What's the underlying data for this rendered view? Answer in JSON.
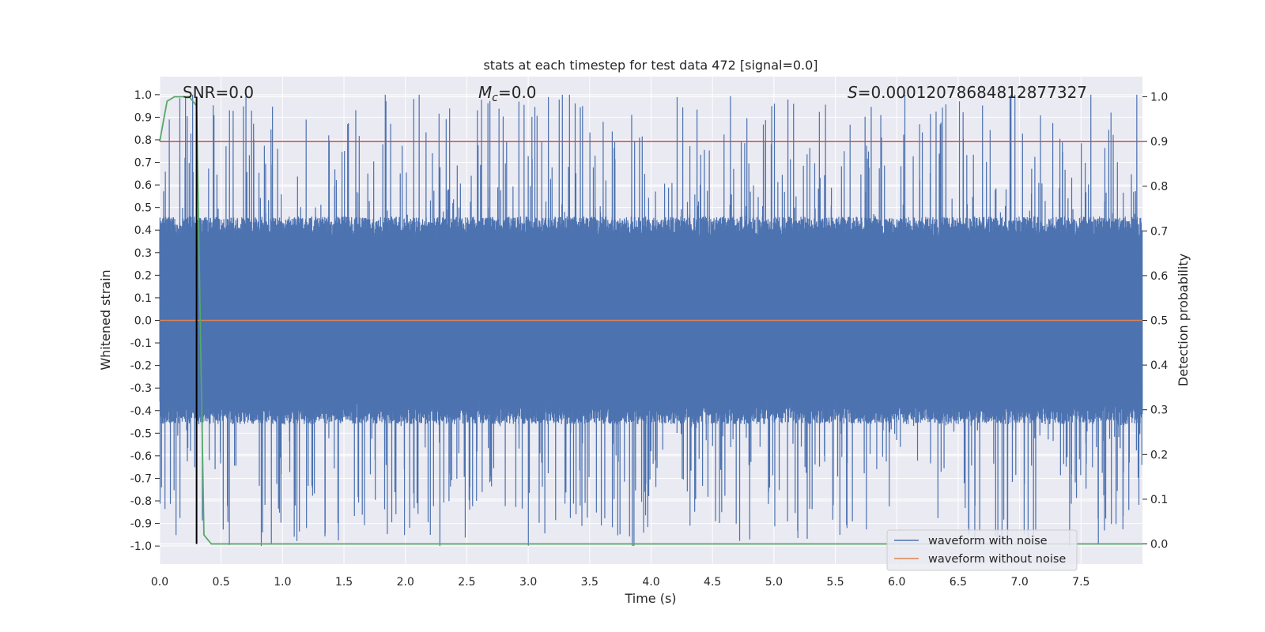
{
  "chart_data": {
    "type": "line",
    "title": "stats at each timestep for test data 472 [signal=0.0]",
    "xlabel": "Time (s)",
    "ylabel_left": "Whitened strain",
    "ylabel_right": "Detection probability",
    "xlim": [
      0.0,
      8.0
    ],
    "ylim_left": [
      -1.08,
      1.08
    ],
    "ylim_right": [
      -0.045,
      1.045
    ],
    "x_ticks": [
      0.0,
      0.5,
      1.0,
      1.5,
      2.0,
      2.5,
      3.0,
      3.5,
      4.0,
      4.5,
      5.0,
      5.5,
      6.0,
      6.5,
      7.0,
      7.5
    ],
    "x_tick_labels": [
      "0.0",
      "0.5",
      "1.0",
      "1.5",
      "2.0",
      "2.5",
      "3.0",
      "3.5",
      "4.0",
      "4.5",
      "5.0",
      "5.5",
      "6.0",
      "6.5",
      "7.0",
      "7.5"
    ],
    "left_ticks": [
      1.0,
      0.9,
      0.8,
      0.7,
      0.6,
      0.5,
      0.4,
      0.3,
      0.2,
      0.1,
      0.0,
      -0.1,
      -0.2,
      -0.3,
      -0.4,
      -0.5,
      -0.6,
      -0.7,
      -0.8,
      -0.9,
      -1.0
    ],
    "left_tick_labels": [
      "1.0",
      "0.9",
      "0.8",
      "0.7",
      "0.6",
      "0.5",
      "0.4",
      "0.3",
      "0.2",
      "0.1",
      "0.0",
      "-0.1",
      "-0.2",
      "-0.3",
      "-0.4",
      "-0.5",
      "-0.6",
      "-0.7",
      "-0.8",
      "-0.9",
      "-1.0"
    ],
    "right_ticks": [
      1.0,
      0.9,
      0.8,
      0.7,
      0.6,
      0.5,
      0.4,
      0.3,
      0.2,
      0.1,
      0.0
    ],
    "right_tick_labels": [
      "1.0",
      "0.9",
      "0.8",
      "0.7",
      "0.6",
      "0.5",
      "0.4",
      "0.3",
      "0.2",
      "0.1",
      "0.0"
    ],
    "annotations": {
      "snr": "SNR=0.0",
      "mc_symbol": "M",
      "mc_subscript": "c",
      "mc_value": "=0.0",
      "s_symbol": "S",
      "s_value": "=0.00012078684812877327"
    },
    "threshold": {
      "axis": "right",
      "value": 0.9,
      "color": "#c44e52"
    },
    "marker_line": {
      "x": 0.3,
      "y_range_right": [
        0.0,
        1.0
      ],
      "color": "#000000"
    },
    "series": [
      {
        "name": "waveform with noise",
        "axis": "left",
        "color": "#4c72b0",
        "sample_rate_hz": 1000,
        "duration_s": 8.0,
        "baseline_abs": 0.4,
        "max_abs": 1.0
      },
      {
        "name": "waveform without noise",
        "axis": "left",
        "color": "#dd8452",
        "constant_value": 0.0
      },
      {
        "name": "detection probability",
        "axis": "right",
        "color": "#55a868",
        "x": [
          0.0,
          0.06,
          0.12,
          0.18,
          0.24,
          0.3,
          0.36,
          0.42,
          0.48,
          8.0
        ],
        "values": [
          0.9,
          0.99,
          1.0,
          1.0,
          1.0,
          0.98,
          0.02,
          0.0,
          0.0,
          0.0
        ]
      }
    ],
    "legend": {
      "location": "lower-right",
      "entries": [
        {
          "label": "waveform with noise",
          "color": "#4c72b0"
        },
        {
          "label": "waveform without noise",
          "color": "#dd8452"
        }
      ]
    },
    "grid": true,
    "style": "seaborn-darkgrid"
  }
}
